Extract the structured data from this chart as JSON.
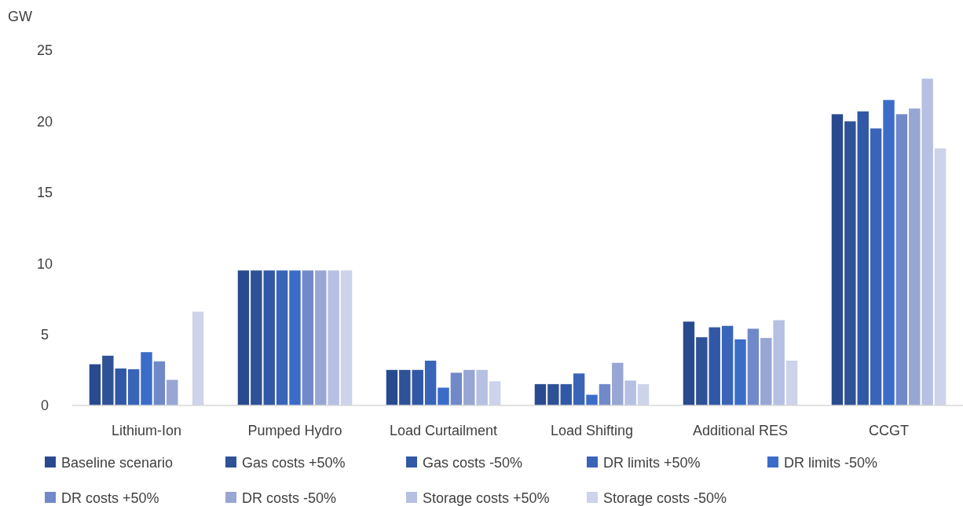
{
  "chart_data": {
    "type": "bar",
    "ylabel": "GW",
    "categories": [
      "Lithium-Ion",
      "Pumped Hydro",
      "Load Curtailment",
      "Load Shifting",
      "Additional RES",
      "CCGT"
    ],
    "series": [
      {
        "name": "Baseline scenario",
        "color": "#2a4a8f",
        "values": [
          2.9,
          9.5,
          2.5,
          1.5,
          5.9,
          20.5
        ]
      },
      {
        "name": "Gas costs +50%",
        "color": "#2f5196",
        "values": [
          3.5,
          9.5,
          2.5,
          1.5,
          4.8,
          20.0
        ]
      },
      {
        "name": "Gas costs -50%",
        "color": "#3158a6",
        "values": [
          2.6,
          9.5,
          2.5,
          1.5,
          5.5,
          20.7
        ]
      },
      {
        "name": "DR limits +50%",
        "color": "#3a64b8",
        "values": [
          2.55,
          9.5,
          3.15,
          2.25,
          5.6,
          19.5
        ]
      },
      {
        "name": "DR limits -50%",
        "color": "#3b6cc8",
        "values": [
          3.75,
          9.5,
          1.25,
          0.75,
          4.65,
          21.5
        ]
      },
      {
        "name": "DR costs +50%",
        "color": "#7189c8",
        "values": [
          3.1,
          9.5,
          2.3,
          1.5,
          5.4,
          20.5
        ]
      },
      {
        "name": "DR costs -50%",
        "color": "#98a6d4",
        "values": [
          1.8,
          9.5,
          2.5,
          3.0,
          4.75,
          20.9
        ]
      },
      {
        "name": "Storage costs +50%",
        "color": "#b5c0e2",
        "values": [
          0,
          9.5,
          2.5,
          1.75,
          6.0,
          23.0
        ]
      },
      {
        "name": "Storage costs -50%",
        "color": "#ccd3ea",
        "values": [
          6.6,
          9.5,
          1.7,
          1.5,
          3.15,
          18.1
        ]
      }
    ],
    "ylim": [
      0,
      25
    ],
    "yticks": [
      0,
      5,
      10,
      15,
      20,
      25
    ],
    "grid": false,
    "legend": "bottom"
  }
}
